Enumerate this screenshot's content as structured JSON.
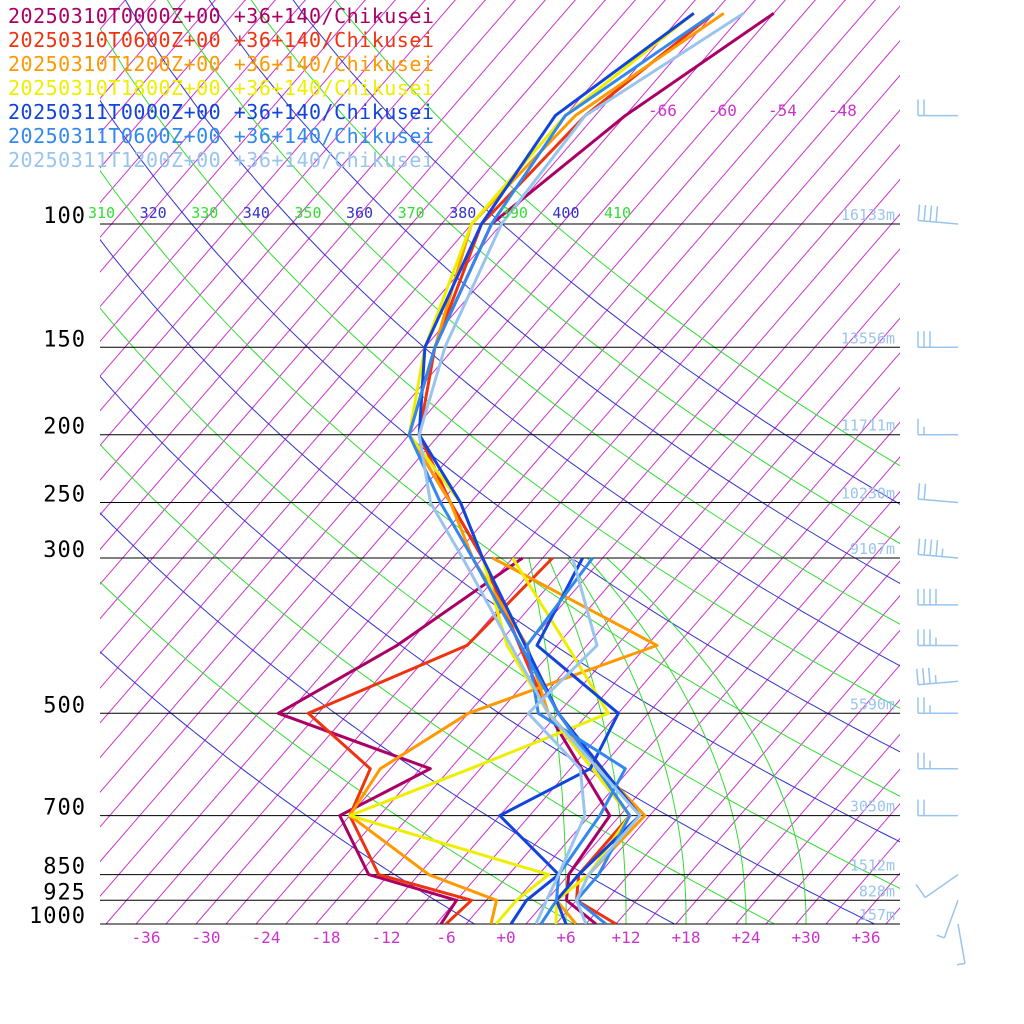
{
  "chart_data": {
    "type": "line",
    "title": "",
    "xlabel": "",
    "ylabel": "",
    "colors": {
      "isotherm": "#cc33cc",
      "theta_e_green": "#33dd33",
      "theta_e_blue": "#3333cc",
      "isobar": "#000000",
      "height_label": "#99c4ee",
      "barb": "#99c4ee"
    },
    "pressure_levels": [
      "100",
      "150",
      "200",
      "250",
      "300",
      "500",
      "700",
      "850",
      "925",
      "1000"
    ],
    "x_ticks": [
      "-36",
      "-30",
      "-24",
      "-18",
      "-12",
      "-6",
      "+0",
      "+6",
      "+12",
      "+18",
      "+24",
      "+30",
      "+36"
    ],
    "top_isotherm_labels": [
      "-66",
      "-60",
      "-54",
      "-48"
    ],
    "theta_labels": [
      "310",
      "320",
      "330",
      "340",
      "350",
      "360",
      "370",
      "380",
      "390",
      "400",
      "410"
    ],
    "height_labels": [
      {
        "p": 100,
        "text": "16133m"
      },
      {
        "p": 150,
        "text": "13556m"
      },
      {
        "p": 200,
        "text": "11711m"
      },
      {
        "p": 250,
        "text": "10230m"
      },
      {
        "p": 300,
        "text": "9107m"
      },
      {
        "p": 500,
        "text": "5590m"
      },
      {
        "p": 700,
        "text": "3050m"
      },
      {
        "p": 850,
        "text": "1512m"
      },
      {
        "p": 925,
        "text": "828m"
      },
      {
        "p": 1000,
        "text": "157m"
      }
    ],
    "series": [
      {
        "name": "20250310T0000Z+00 +36+140/Chikusei",
        "color": "#aa0066",
        "temperature": [
          [
            1000,
            9.0
          ],
          [
            925,
            4.0
          ],
          [
            850,
            2.0
          ],
          [
            700,
            1.0
          ],
          [
            500,
            -14.0
          ],
          [
            300,
            -34.0
          ],
          [
            250,
            -42.0
          ],
          [
            200,
            -52.0
          ],
          [
            150,
            -57.0
          ],
          [
            100,
            -62.0
          ],
          [
            70,
            -58.0
          ],
          [
            50,
            -52.0
          ]
        ],
        "dewpoint": [
          [
            1000,
            -6.5
          ],
          [
            925,
            -7.0
          ],
          [
            850,
            -18.0
          ],
          [
            700,
            -26.0
          ],
          [
            600,
            -21.0
          ],
          [
            500,
            -41.0
          ],
          [
            400,
            -35.0
          ],
          [
            300,
            -30.0
          ]
        ]
      },
      {
        "name": "20250310T0600Z+00 +36+140/Chikusei",
        "color": "#ee3311",
        "temperature": [
          [
            1000,
            11.0
          ],
          [
            925,
            5.0
          ],
          [
            850,
            3.0
          ],
          [
            700,
            3.0
          ],
          [
            500,
            -14.0
          ],
          [
            300,
            -34.0
          ],
          [
            250,
            -42.0
          ],
          [
            200,
            -51.0
          ],
          [
            150,
            -57.0
          ],
          [
            100,
            -63.0
          ],
          [
            70,
            -62.0
          ],
          [
            50,
            -58.0
          ]
        ],
        "dewpoint": [
          [
            1000,
            -6.0
          ],
          [
            925,
            -5.5
          ],
          [
            850,
            -17.0
          ],
          [
            700,
            -25.0
          ],
          [
            600,
            -27.0
          ],
          [
            500,
            -38.0
          ],
          [
            400,
            -28.0
          ],
          [
            300,
            -27.0
          ]
        ]
      },
      {
        "name": "20250310T1200Z+00 +36+140/Chikusei",
        "color": "#ff9900",
        "temperature": [
          [
            1000,
            7.0
          ],
          [
            925,
            3.0
          ],
          [
            850,
            4.0
          ],
          [
            700,
            4.5
          ],
          [
            500,
            -14.0
          ],
          [
            400,
            -22.0
          ],
          [
            300,
            -35.0
          ],
          [
            250,
            -42.0
          ],
          [
            200,
            -52.0
          ],
          [
            150,
            -57.0
          ],
          [
            100,
            -64.0
          ],
          [
            70,
            -63.0
          ],
          [
            50,
            -57.0
          ]
        ],
        "dewpoint": [
          [
            1000,
            -1.5
          ],
          [
            925,
            -3.0
          ],
          [
            850,
            -12.0
          ],
          [
            700,
            -25.0
          ],
          [
            600,
            -26.0
          ],
          [
            500,
            -22.0
          ],
          [
            400,
            -9.0
          ],
          [
            300,
            -33.0
          ]
        ]
      },
      {
        "name": "20250310T1800Z+00 +36+140/Chikusei",
        "color": "#eeee00",
        "temperature": [
          [
            1000,
            5.0
          ],
          [
            925,
            3.0
          ],
          [
            850,
            4.0
          ],
          [
            700,
            3.0
          ],
          [
            500,
            -14.0
          ],
          [
            400,
            -24.0
          ],
          [
            300,
            -34.0
          ],
          [
            250,
            -41.0
          ],
          [
            200,
            -52.0
          ],
          [
            150,
            -58.0
          ],
          [
            100,
            -64.0
          ],
          [
            70,
            -64.0
          ],
          [
            50,
            -60.0
          ]
        ],
        "dewpoint": [
          [
            1000,
            -1.0
          ],
          [
            925,
            -1.0
          ],
          [
            850,
            0.0
          ],
          [
            700,
            -25.0
          ],
          [
            600,
            -17.0
          ],
          [
            500,
            -8.0
          ],
          [
            400,
            -18.0
          ],
          [
            300,
            -31.0
          ]
        ]
      },
      {
        "name": "20250311T0000Z+00 +36+140/Chikusei",
        "color": "#1144dd",
        "temperature": [
          [
            1000,
            6.0
          ],
          [
            925,
            3.0
          ],
          [
            850,
            3.0
          ],
          [
            700,
            4.0
          ],
          [
            500,
            -13.0
          ],
          [
            300,
            -34.0
          ],
          [
            250,
            -41.0
          ],
          [
            200,
            -51.0
          ],
          [
            150,
            -58.0
          ],
          [
            100,
            -63.0
          ],
          [
            70,
            -65.0
          ],
          [
            50,
            -60.0
          ]
        ],
        "dewpoint": [
          [
            1000,
            0.5
          ],
          [
            925,
            0.0
          ],
          [
            850,
            1.0
          ],
          [
            700,
            -10.0
          ],
          [
            600,
            -5.0
          ],
          [
            500,
            -7.0
          ],
          [
            400,
            -21.0
          ],
          [
            300,
            -24.0
          ]
        ]
      },
      {
        "name": "20250311T0600Z+00 +36+140/Chikusei",
        "color": "#3388ee",
        "temperature": [
          [
            1000,
            10.0
          ],
          [
            925,
            5.0
          ],
          [
            850,
            5.0
          ],
          [
            700,
            3.0
          ],
          [
            500,
            -13.0
          ],
          [
            300,
            -35.0
          ],
          [
            250,
            -43.0
          ],
          [
            200,
            -52.0
          ],
          [
            150,
            -57.0
          ],
          [
            100,
            -62.0
          ],
          [
            70,
            -64.0
          ],
          [
            50,
            -58.0
          ]
        ],
        "dewpoint": [
          [
            1000,
            3.5
          ],
          [
            925,
            3.0
          ],
          [
            850,
            1.0
          ],
          [
            700,
            0.0
          ],
          [
            600,
            -1.5
          ],
          [
            500,
            -15.0
          ],
          [
            400,
            -22.0
          ],
          [
            300,
            -23.0
          ]
        ]
      },
      {
        "name": "20250311T1200Z+00 +36+140/Chikusei",
        "color": "#99c4ee",
        "temperature": [
          [
            1000,
            8.0
          ],
          [
            925,
            5.0
          ],
          [
            850,
            4.0
          ],
          [
            700,
            4.0
          ],
          [
            500,
            -14.0
          ],
          [
            300,
            -36.0
          ],
          [
            250,
            -44.0
          ],
          [
            200,
            -51.0
          ],
          [
            150,
            -56.0
          ],
          [
            100,
            -61.0
          ],
          [
            70,
            -62.0
          ],
          [
            50,
            -55.0
          ]
        ],
        "dewpoint": [
          [
            1000,
            3.0
          ],
          [
            925,
            2.0
          ],
          [
            850,
            1.0
          ],
          [
            700,
            -1.5
          ],
          [
            600,
            -6.0
          ],
          [
            500,
            -16.0
          ],
          [
            400,
            -15.0
          ],
          [
            300,
            -25.0
          ]
        ]
      }
    ],
    "wind_barbs": [
      {
        "p": 70,
        "dir": 270,
        "kt": 20
      },
      {
        "p": 100,
        "dir": 275,
        "kt": 40
      },
      {
        "p": 150,
        "dir": 270,
        "kt": 30
      },
      {
        "p": 200,
        "dir": 270,
        "kt": 15
      },
      {
        "p": 250,
        "dir": 275,
        "kt": 20
      },
      {
        "p": 300,
        "dir": 275,
        "kt": 45
      },
      {
        "p": 350,
        "dir": 270,
        "kt": 40
      },
      {
        "p": 400,
        "dir": 270,
        "kt": 35
      },
      {
        "p": 450,
        "dir": 265,
        "kt": 35
      },
      {
        "p": 500,
        "dir": 270,
        "kt": 25
      },
      {
        "p": 600,
        "dir": 270,
        "kt": 25
      },
      {
        "p": 700,
        "dir": 270,
        "kt": 20
      },
      {
        "p": 850,
        "dir": 235,
        "kt": 10
      },
      {
        "p": 925,
        "dir": 200,
        "kt": 5
      },
      {
        "p": 1000,
        "dir": 170,
        "kt": 5
      }
    ]
  }
}
